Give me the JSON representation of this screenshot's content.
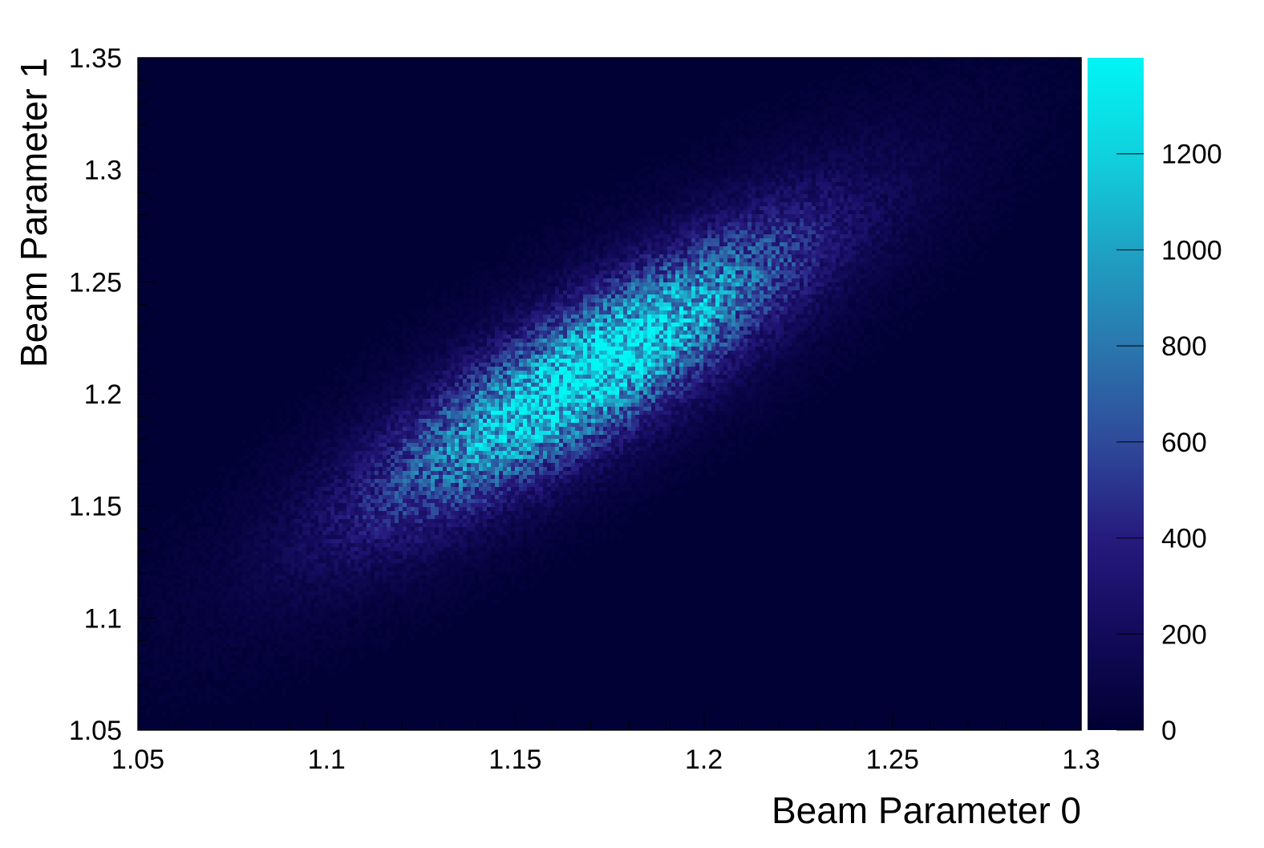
{
  "chart_data": {
    "type": "heatmap",
    "title": "",
    "xlabel": "Beam Parameter 0",
    "ylabel": "Beam Parameter 1",
    "xlim": [
      1.05,
      1.3
    ],
    "ylim": [
      1.05,
      1.35
    ],
    "x_ticks": [
      {
        "value": 1.05,
        "label": "1.05"
      },
      {
        "value": 1.1,
        "label": "1.1"
      },
      {
        "value": 1.15,
        "label": "1.15"
      },
      {
        "value": 1.2,
        "label": "1.2"
      },
      {
        "value": 1.25,
        "label": "1.25"
      },
      {
        "value": 1.3,
        "label": "1.3"
      }
    ],
    "y_ticks": [
      {
        "value": 1.05,
        "label": "1.05"
      },
      {
        "value": 1.1,
        "label": "1.1"
      },
      {
        "value": 1.15,
        "label": "1.15"
      },
      {
        "value": 1.2,
        "label": "1.2"
      },
      {
        "value": 1.25,
        "label": "1.25"
      },
      {
        "value": 1.3,
        "label": "1.3"
      },
      {
        "value": 1.35,
        "label": "1.35"
      }
    ],
    "colorbar": {
      "range": [
        0,
        1400
      ],
      "ticks": [
        {
          "value": 0,
          "label": "0"
        },
        {
          "value": 200,
          "label": "200"
        },
        {
          "value": 400,
          "label": "400"
        },
        {
          "value": 600,
          "label": "600"
        },
        {
          "value": 800,
          "label": "800"
        },
        {
          "value": 1000,
          "label": "1000"
        },
        {
          "value": 1200,
          "label": "1200"
        }
      ],
      "colormap": [
        "#000033",
        "#130a5a",
        "#261a7e",
        "#2f4a9a",
        "#2a77ae",
        "#1ea2c4",
        "#10d2de",
        "#00f5f5"
      ]
    },
    "distribution": {
      "shape": "correlated-gaussian",
      "mean": [
        1.17,
        1.21
      ],
      "sigma": [
        0.036,
        0.041
      ],
      "correlation": 0.85,
      "peak_count": 1300
    },
    "grid": false,
    "legend": "none"
  }
}
